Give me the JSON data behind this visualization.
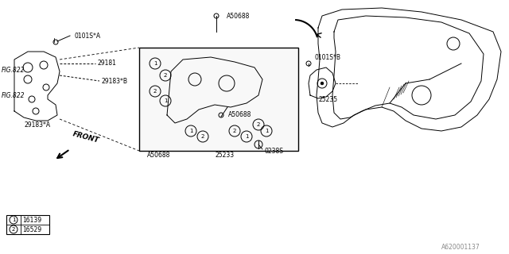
{
  "bg_color": "#ffffff",
  "border_color": "#000000",
  "line_color": "#000000",
  "figsize": [
    6.4,
    3.2
  ],
  "dpi": 100,
  "labels": {
    "fig822_top": "FIG.822",
    "fig822_bot": "FIG.822",
    "part_29181": "29181",
    "part_29183B": "29183*B",
    "part_29183A": "29183*A",
    "part_0101SA": "0101S*A",
    "part_0101SB": "0101S*B",
    "part_A50688_top": "A50688",
    "part_A50688_bot": "A50688",
    "part_0238S": "0238S",
    "part_25233": "25233",
    "part_25235": "25235",
    "legend_1": "16139",
    "legend_2": "16529",
    "front": "FRONT",
    "ref_num": "A620001137"
  },
  "legend_items": [
    {
      "symbol": "1",
      "text": "16139"
    },
    {
      "symbol": "2",
      "text": "16529"
    }
  ]
}
